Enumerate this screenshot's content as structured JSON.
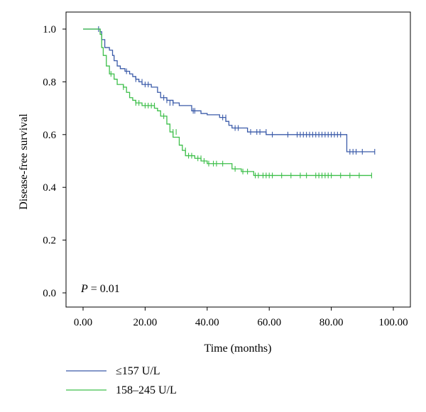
{
  "chart_data": {
    "type": "line",
    "subtype": "kaplan-meier step curve with censor marks",
    "xlabel": "Time (months)",
    "ylabel": "Disease-free survival",
    "xlim": [
      0,
      100
    ],
    "ylim": [
      0,
      1.0
    ],
    "x_ticks": [
      0,
      20,
      40,
      60,
      80,
      100
    ],
    "x_tick_labels": [
      "0.00",
      "20.00",
      "40.00",
      "60.00",
      "80.00",
      "100.00"
    ],
    "y_ticks": [
      0,
      0.2,
      0.4,
      0.6,
      0.8,
      1.0
    ],
    "y_tick_labels": [
      "0.0",
      "0.2",
      "0.4",
      "0.6",
      "0.8",
      "1.0"
    ],
    "grid": false,
    "legend_position": "below-left",
    "annotation": {
      "italic": "P",
      "rest": " = 0.01"
    },
    "series": [
      {
        "name": "≤157 U/L",
        "color": "#3b5ba9",
        "steps": [
          [
            0,
            1.0
          ],
          [
            5.5,
            0.99
          ],
          [
            6,
            0.96
          ],
          [
            7,
            0.93
          ],
          [
            8.5,
            0.92
          ],
          [
            9.5,
            0.9
          ],
          [
            10,
            0.88
          ],
          [
            11,
            0.86
          ],
          [
            12,
            0.85
          ],
          [
            13.5,
            0.84
          ],
          [
            15,
            0.83
          ],
          [
            16,
            0.82
          ],
          [
            17,
            0.81
          ],
          [
            18,
            0.8
          ],
          [
            19,
            0.79
          ],
          [
            22,
            0.78
          ],
          [
            24,
            0.76
          ],
          [
            25,
            0.74
          ],
          [
            27,
            0.73
          ],
          [
            29,
            0.72
          ],
          [
            31,
            0.71
          ],
          [
            35,
            0.69
          ],
          [
            38,
            0.68
          ],
          [
            40,
            0.675
          ],
          [
            44,
            0.665
          ],
          [
            46,
            0.65
          ],
          [
            47,
            0.635
          ],
          [
            48,
            0.625
          ],
          [
            53,
            0.61
          ],
          [
            59,
            0.6
          ],
          [
            85,
            0.535
          ],
          [
            94,
            0.535
          ]
        ],
        "censors": [
          [
            5,
            1.0
          ],
          [
            14,
            0.84
          ],
          [
            17,
            0.81
          ],
          [
            19,
            0.8
          ],
          [
            20,
            0.79
          ],
          [
            21,
            0.79
          ],
          [
            26,
            0.74
          ],
          [
            27,
            0.73
          ],
          [
            28,
            0.72
          ],
          [
            29,
            0.72
          ],
          [
            35.5,
            0.69
          ],
          [
            36,
            0.69
          ],
          [
            45,
            0.665
          ],
          [
            46,
            0.665
          ],
          [
            49,
            0.625
          ],
          [
            50,
            0.625
          ],
          [
            54,
            0.61
          ],
          [
            56,
            0.61
          ],
          [
            57,
            0.61
          ],
          [
            59,
            0.61
          ],
          [
            61,
            0.6
          ],
          [
            66,
            0.6
          ],
          [
            69,
            0.6
          ],
          [
            70,
            0.6
          ],
          [
            71,
            0.6
          ],
          [
            72,
            0.6
          ],
          [
            73,
            0.6
          ],
          [
            74,
            0.6
          ],
          [
            75,
            0.6
          ],
          [
            76,
            0.6
          ],
          [
            77,
            0.6
          ],
          [
            78,
            0.6
          ],
          [
            79,
            0.6
          ],
          [
            80,
            0.6
          ],
          [
            81,
            0.6
          ],
          [
            82,
            0.6
          ],
          [
            83,
            0.6
          ],
          [
            86,
            0.535
          ],
          [
            87,
            0.535
          ],
          [
            88,
            0.535
          ],
          [
            90,
            0.535
          ],
          [
            94,
            0.535
          ]
        ]
      },
      {
        "name": "158–245 U/L",
        "color": "#3dbf4a",
        "steps": [
          [
            0,
            1.0
          ],
          [
            5.5,
            0.98
          ],
          [
            6,
            0.93
          ],
          [
            6.5,
            0.9
          ],
          [
            7.5,
            0.86
          ],
          [
            8.5,
            0.83
          ],
          [
            10,
            0.81
          ],
          [
            11,
            0.79
          ],
          [
            13,
            0.78
          ],
          [
            14,
            0.76
          ],
          [
            15,
            0.74
          ],
          [
            16,
            0.73
          ],
          [
            17,
            0.72
          ],
          [
            19,
            0.71
          ],
          [
            23,
            0.7
          ],
          [
            24,
            0.69
          ],
          [
            25,
            0.67
          ],
          [
            27,
            0.64
          ],
          [
            28,
            0.61
          ],
          [
            29,
            0.59
          ],
          [
            31,
            0.56
          ],
          [
            32,
            0.54
          ],
          [
            33,
            0.52
          ],
          [
            36,
            0.51
          ],
          [
            38,
            0.5
          ],
          [
            40,
            0.49
          ],
          [
            48,
            0.47
          ],
          [
            51,
            0.46
          ],
          [
            55,
            0.445
          ],
          [
            93,
            0.445
          ]
        ],
        "censors": [
          [
            9,
            0.83
          ],
          [
            13,
            0.78
          ],
          [
            17,
            0.72
          ],
          [
            18,
            0.72
          ],
          [
            20,
            0.71
          ],
          [
            21,
            0.71
          ],
          [
            22,
            0.71
          ],
          [
            23,
            0.71
          ],
          [
            26,
            0.67
          ],
          [
            29,
            0.61
          ],
          [
            30,
            0.61
          ],
          [
            33,
            0.54
          ],
          [
            34,
            0.52
          ],
          [
            35,
            0.52
          ],
          [
            37,
            0.51
          ],
          [
            38,
            0.51
          ],
          [
            39,
            0.5
          ],
          [
            40.5,
            0.49
          ],
          [
            42,
            0.49
          ],
          [
            43,
            0.49
          ],
          [
            45,
            0.49
          ],
          [
            49,
            0.47
          ],
          [
            51.5,
            0.46
          ],
          [
            53,
            0.46
          ],
          [
            55.5,
            0.445
          ],
          [
            56.5,
            0.445
          ],
          [
            58,
            0.445
          ],
          [
            59,
            0.445
          ],
          [
            60,
            0.445
          ],
          [
            61,
            0.445
          ],
          [
            64,
            0.445
          ],
          [
            67,
            0.445
          ],
          [
            70,
            0.445
          ],
          [
            72,
            0.445
          ],
          [
            75,
            0.445
          ],
          [
            76,
            0.445
          ],
          [
            77,
            0.445
          ],
          [
            78,
            0.445
          ],
          [
            79,
            0.445
          ],
          [
            80,
            0.445
          ],
          [
            83,
            0.445
          ],
          [
            86,
            0.445
          ],
          [
            89,
            0.445
          ],
          [
            93,
            0.445
          ]
        ]
      }
    ]
  }
}
